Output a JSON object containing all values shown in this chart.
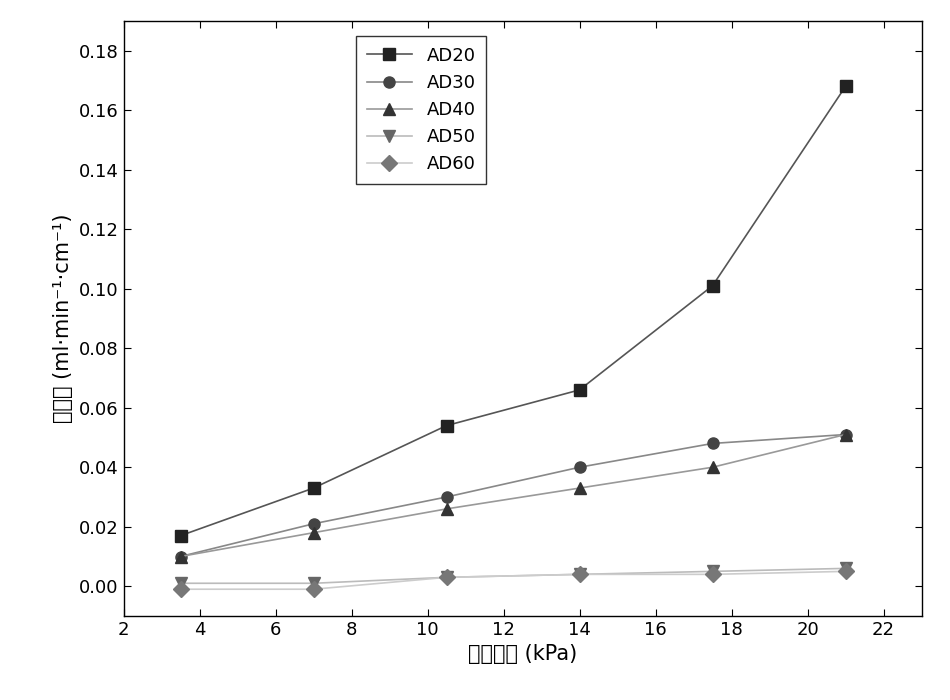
{
  "x": [
    3.5,
    7.0,
    10.5,
    14.0,
    17.5,
    21.0
  ],
  "series": {
    "AD20": [
      0.017,
      0.033,
      0.054,
      0.066,
      0.101,
      0.168
    ],
    "AD30": [
      0.01,
      0.021,
      0.03,
      0.04,
      0.048,
      0.051
    ],
    "AD40": [
      0.01,
      0.018,
      0.026,
      0.033,
      0.04,
      0.051
    ],
    "AD50": [
      0.001,
      0.001,
      0.003,
      0.004,
      0.005,
      0.006
    ],
    "AD60": [
      -0.001,
      -0.001,
      0.003,
      0.004,
      0.004,
      0.005
    ]
  },
  "markers": {
    "AD20": "s",
    "AD30": "o",
    "AD40": "^",
    "AD50": "v",
    "AD60": "D"
  },
  "line_colors": {
    "AD20": "#555555",
    "AD30": "#888888",
    "AD40": "#999999",
    "AD50": "#bbbbbb",
    "AD60": "#cccccc"
  },
  "marker_colors": {
    "AD20": "#222222",
    "AD30": "#444444",
    "AD40": "#333333",
    "AD50": "#666666",
    "AD60": "#777777"
  },
  "xlabel_cn": "气体压强",
  "xlabel_unit": " (kPa)",
  "ylabel_cn": "漏气率",
  "ylabel_unit": " (ml·min⁻¹·cm⁻¹)",
  "xlim": [
    2,
    23
  ],
  "ylim": [
    -0.01,
    0.19
  ],
  "xticks": [
    2,
    4,
    6,
    8,
    10,
    12,
    14,
    16,
    18,
    20,
    22
  ],
  "yticks": [
    0.0,
    0.02,
    0.04,
    0.06,
    0.08,
    0.1,
    0.12,
    0.14,
    0.16,
    0.18
  ],
  "marker_size": 8,
  "line_width": 1.2,
  "font_size_label": 15,
  "font_size_tick": 13,
  "font_size_legend": 13
}
